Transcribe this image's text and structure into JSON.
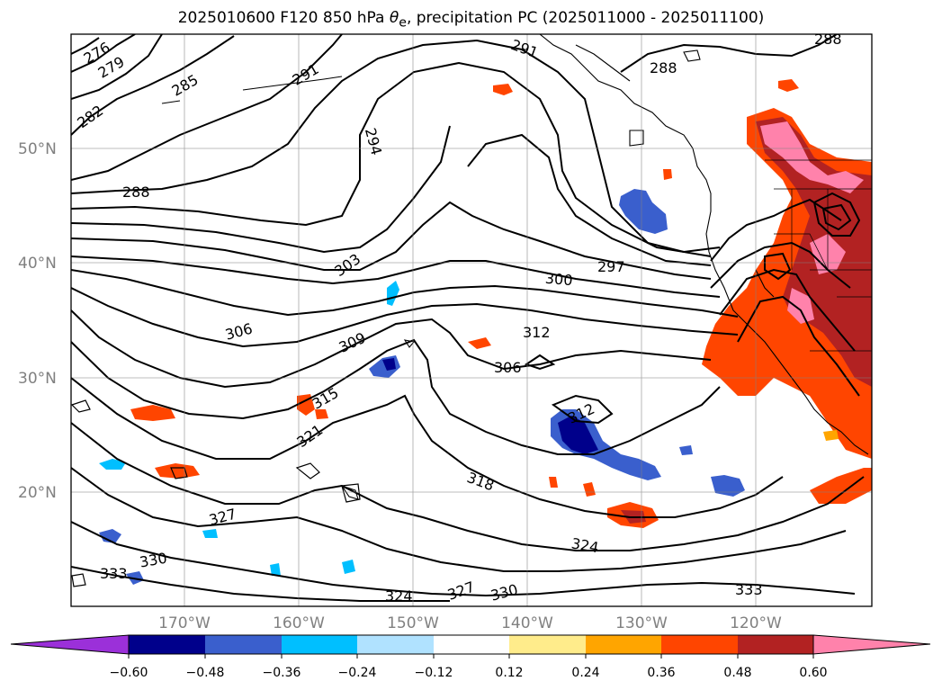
{
  "title": {
    "prefix": "2025010600 F120 850 hPa ",
    "theta": "θ",
    "sub": "e",
    "suffix": ", precipitation PC (2025011000 - 2025011100)"
  },
  "lat_labels": [
    "50°N",
    "40°N",
    "30°N",
    "20°N"
  ],
  "lon_labels": [
    "170°W",
    "160°W",
    "150°W",
    "140°W",
    "130°W",
    "120°W"
  ],
  "contour_labels": [
    {
      "text": "276",
      "v": 276
    },
    {
      "text": "279",
      "v": 279
    },
    {
      "text": "282",
      "v": 282
    },
    {
      "text": "285",
      "v": 285
    },
    {
      "text": "291",
      "v": 291
    },
    {
      "text": "291",
      "v": 291
    },
    {
      "text": "288",
      "v": 288
    },
    {
      "text": "288",
      "v": 288
    },
    {
      "text": "294",
      "v": 294
    },
    {
      "text": "288",
      "v": 288
    },
    {
      "text": "303",
      "v": 303
    },
    {
      "text": "300",
      "v": 300
    },
    {
      "text": "297",
      "v": 297
    },
    {
      "text": "306",
      "v": 306
    },
    {
      "text": "309",
      "v": 309
    },
    {
      "text": "312",
      "v": 312
    },
    {
      "text": "306",
      "v": 306
    },
    {
      "text": "315",
      "v": 315
    },
    {
      "text": "312",
      "v": 312
    },
    {
      "text": "321",
      "v": 321
    },
    {
      "text": "318",
      "v": 318
    },
    {
      "text": "327",
      "v": 327
    },
    {
      "text": "324",
      "v": 324
    },
    {
      "text": "330",
      "v": 330
    },
    {
      "text": "333",
      "v": 333
    },
    {
      "text": "324",
      "v": 324
    },
    {
      "text": "327",
      "v": 327
    },
    {
      "text": "330",
      "v": 330
    },
    {
      "text": "333",
      "v": 333
    }
  ],
  "colorbar": {
    "ticks": [
      "−0.60",
      "−0.48",
      "−0.36",
      "−0.24",
      "−0.12",
      "0.12",
      "0.24",
      "0.36",
      "0.48",
      "0.60"
    ],
    "colors": [
      "#9b30d9",
      "#00008b",
      "#3a5fcd",
      "#00bfff",
      "#b0e2ff",
      "#ffffff",
      "#ffec8b",
      "#ffa500",
      "#ff4500",
      "#b22222",
      "#ff82ab"
    ]
  },
  "colors": {
    "contour": "#000000",
    "grid": "#808080",
    "coast": "#000000"
  }
}
